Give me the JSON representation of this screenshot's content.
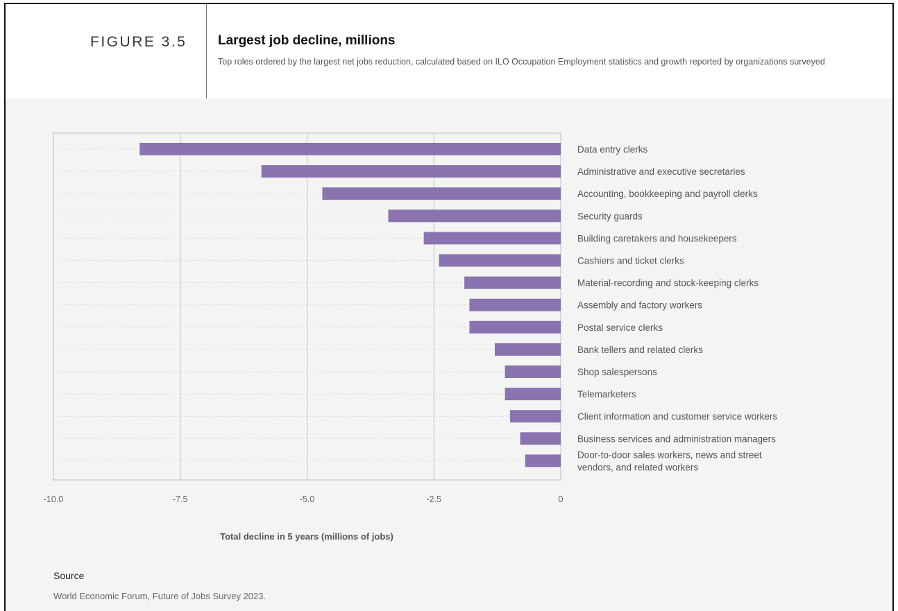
{
  "header": {
    "figure_label": "FIGURE 3.5",
    "title": "Largest job decline, millions",
    "subtitle": "Top roles ordered by the largest net jobs reduction, calculated based on ILO Occupation Employment statistics and growth reported by organizations surveyed"
  },
  "chart_data": {
    "type": "bar",
    "orientation": "horizontal",
    "xlabel": "Total decline in 5 years (millions of jobs)",
    "xlim": [
      -10.0,
      0
    ],
    "xticks": [
      "-10.0",
      "-7.5",
      "-5.0",
      "-2.5",
      "0"
    ],
    "grid": true,
    "bar_color": "#8a74b0",
    "categories": [
      "Data entry clerks",
      "Administrative and executive secretaries",
      "Accounting, bookkeeping and payroll clerks",
      "Security guards",
      "Building caretakers and housekeepers",
      "Cashiers and ticket clerks",
      "Material-recording and stock-keeping clerks",
      "Assembly and factory workers",
      "Postal service clerks",
      "Bank tellers and related clerks",
      "Shop salespersons",
      "Telemarketers",
      "Client information and customer service workers",
      "Business services and administration managers",
      [
        "Door-to-door sales workers, news and street",
        "vendors, and related workers"
      ]
    ],
    "values": [
      -8.3,
      -5.9,
      -4.7,
      -3.4,
      -2.7,
      -2.4,
      -1.9,
      -1.8,
      -1.8,
      -1.3,
      -1.1,
      -1.1,
      -1.0,
      -0.8,
      -0.7
    ]
  },
  "source": {
    "heading": "Source",
    "text": "World Economic Forum, Future of Jobs Survey 2023."
  }
}
